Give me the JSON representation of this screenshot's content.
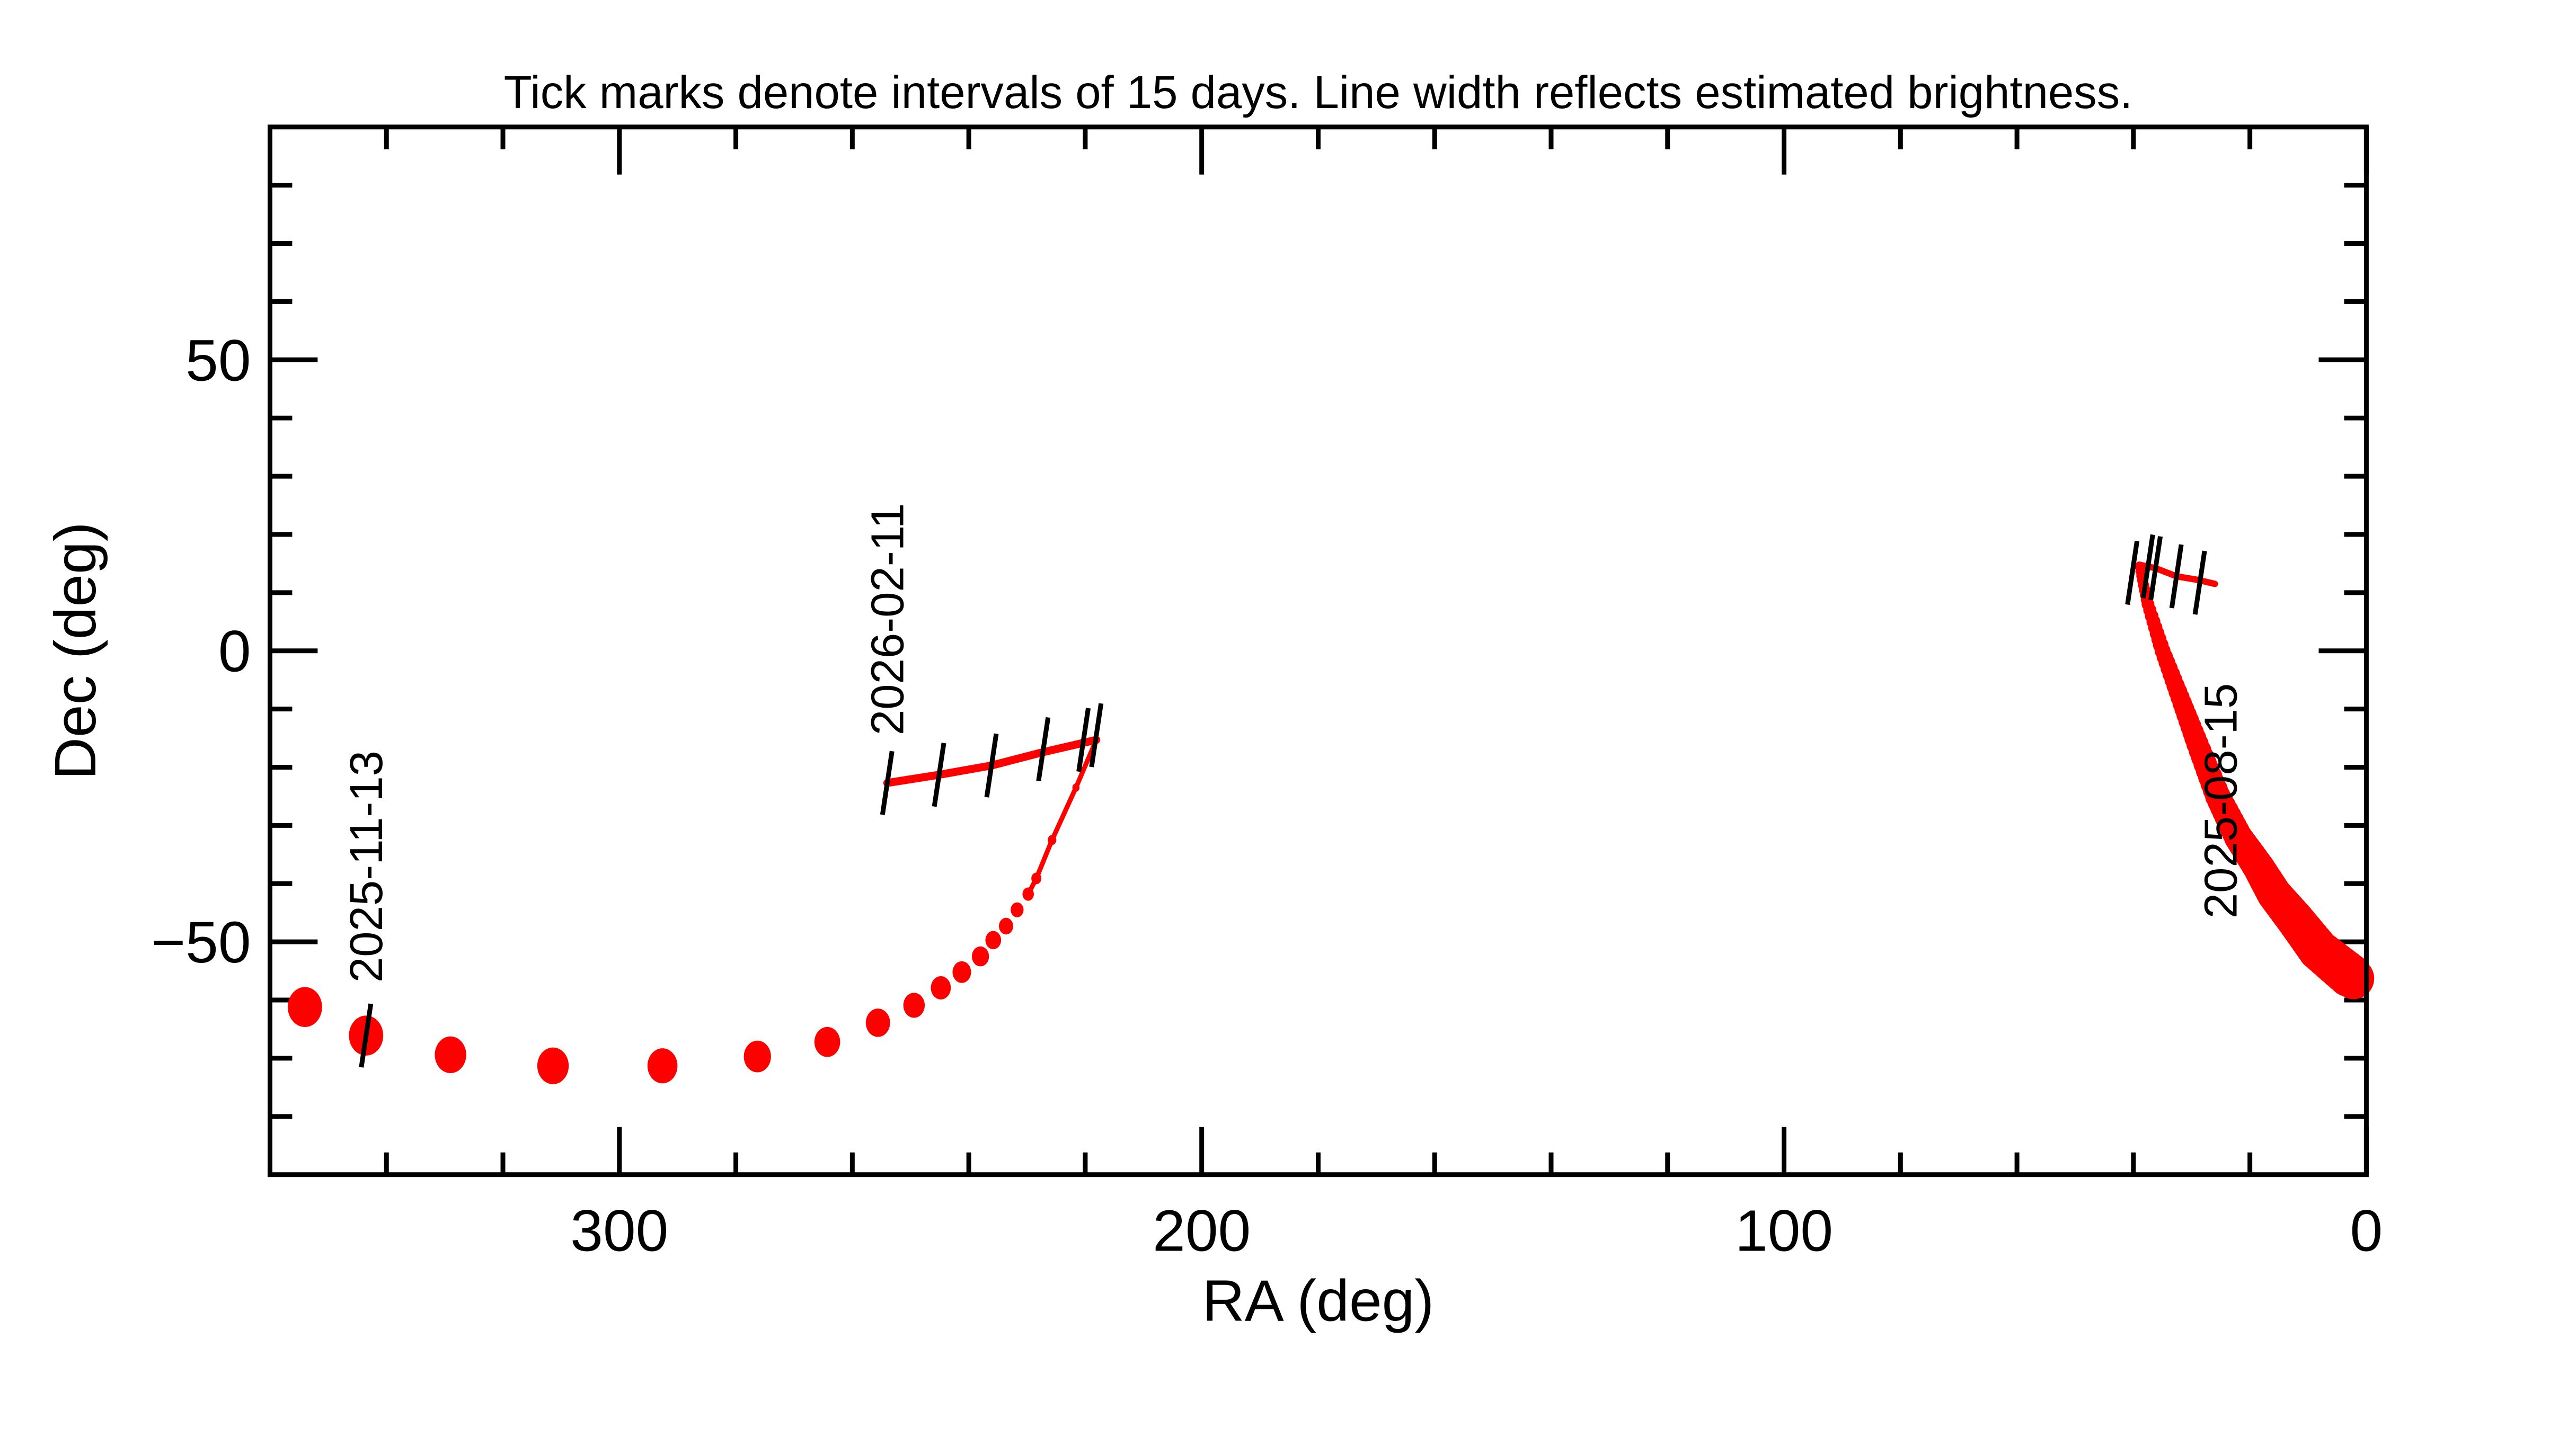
{
  "chart_data": {
    "type": "line",
    "title": "Tick marks denote intervals of 15 days.  Line width reflects estimated brightness.",
    "xlabel": "RA (deg)",
    "ylabel": "Dec (deg)",
    "xlim": [
      360,
      0
    ],
    "ylim": [
      -90,
      90
    ],
    "x_ticks": [
      300,
      200,
      100,
      0
    ],
    "x_tick_labels": [
      "300",
      "200",
      "100",
      "0"
    ],
    "y_ticks": [
      50,
      0,
      -50
    ],
    "y_tick_labels": [
      "50",
      "0",
      "−50"
    ],
    "grid": false,
    "track_color": "#ff0000",
    "tick_color": "#000000",
    "segments": [
      {
        "points": [
          [
            26,
            11.5
          ],
          [
            29,
            12.2
          ],
          [
            32.6,
            12.8
          ],
          [
            36.2,
            14.2
          ],
          [
            39,
            14.8
          ]
        ]
      },
      {
        "points": [
          [
            39,
            14.5
          ],
          [
            37.5,
            8
          ],
          [
            35,
            0
          ],
          [
            32,
            -8
          ],
          [
            29,
            -16
          ],
          [
            25.5,
            -25
          ],
          [
            22,
            -32
          ],
          [
            18.5,
            -37.2
          ],
          [
            15.8,
            -41.8
          ],
          [
            12.2,
            -46.2
          ],
          [
            8.2,
            -51.4
          ],
          [
            2.2,
            -56.3
          ]
        ]
      },
      {
        "points": [
          [
            354,
            -61.2
          ],
          [
            343.5,
            -66.1
          ],
          [
            329,
            -69.4
          ],
          [
            311.4,
            -71.3
          ],
          [
            292.6,
            -71.3
          ],
          [
            276.3,
            -69.7
          ],
          [
            264.3,
            -67.2
          ],
          [
            255.6,
            -63.9
          ],
          [
            249.4,
            -60.9
          ],
          [
            244.8,
            -57.9
          ],
          [
            241.2,
            -55.2
          ],
          [
            238,
            -52.5
          ],
          [
            235.8,
            -49.7
          ],
          [
            233.6,
            -47.3
          ],
          [
            231.7,
            -44.5
          ],
          [
            229.8,
            -41.8
          ],
          [
            228.4,
            -39.1
          ],
          [
            225.7,
            -32.5
          ],
          [
            221.6,
            -23.5
          ],
          [
            218.1,
            -15.3
          ]
        ]
      },
      {
        "points": [
          [
            218.1,
            -15.3
          ],
          [
            222,
            -16.2
          ],
          [
            227.2,
            -17.4
          ],
          [
            236.1,
            -19.7
          ],
          [
            245.1,
            -21.3
          ],
          [
            254,
            -22.7
          ]
        ]
      }
    ],
    "interval_ticks": [
      [
        254,
        -22.7
      ],
      [
        245.1,
        -21.3
      ],
      [
        236.1,
        -19.7
      ],
      [
        227.2,
        -16.9
      ],
      [
        220.3,
        -15.3
      ],
      [
        218.1,
        -14.5
      ],
      [
        343.5,
        -66.1
      ],
      [
        40.2,
        13.4
      ],
      [
        37.5,
        14.5
      ],
      [
        36.2,
        14.2
      ],
      [
        32.6,
        12.8
      ],
      [
        28.6,
        11.7
      ]
    ],
    "date_labels": [
      {
        "text": "2026-02-11",
        "ra": 254,
        "dec": -14.5
      },
      {
        "text": "2025-11-13",
        "ra": 343.5,
        "dec": -57
      },
      {
        "text": "2025-08-15",
        "ra": 25,
        "dec": -46
      }
    ]
  }
}
